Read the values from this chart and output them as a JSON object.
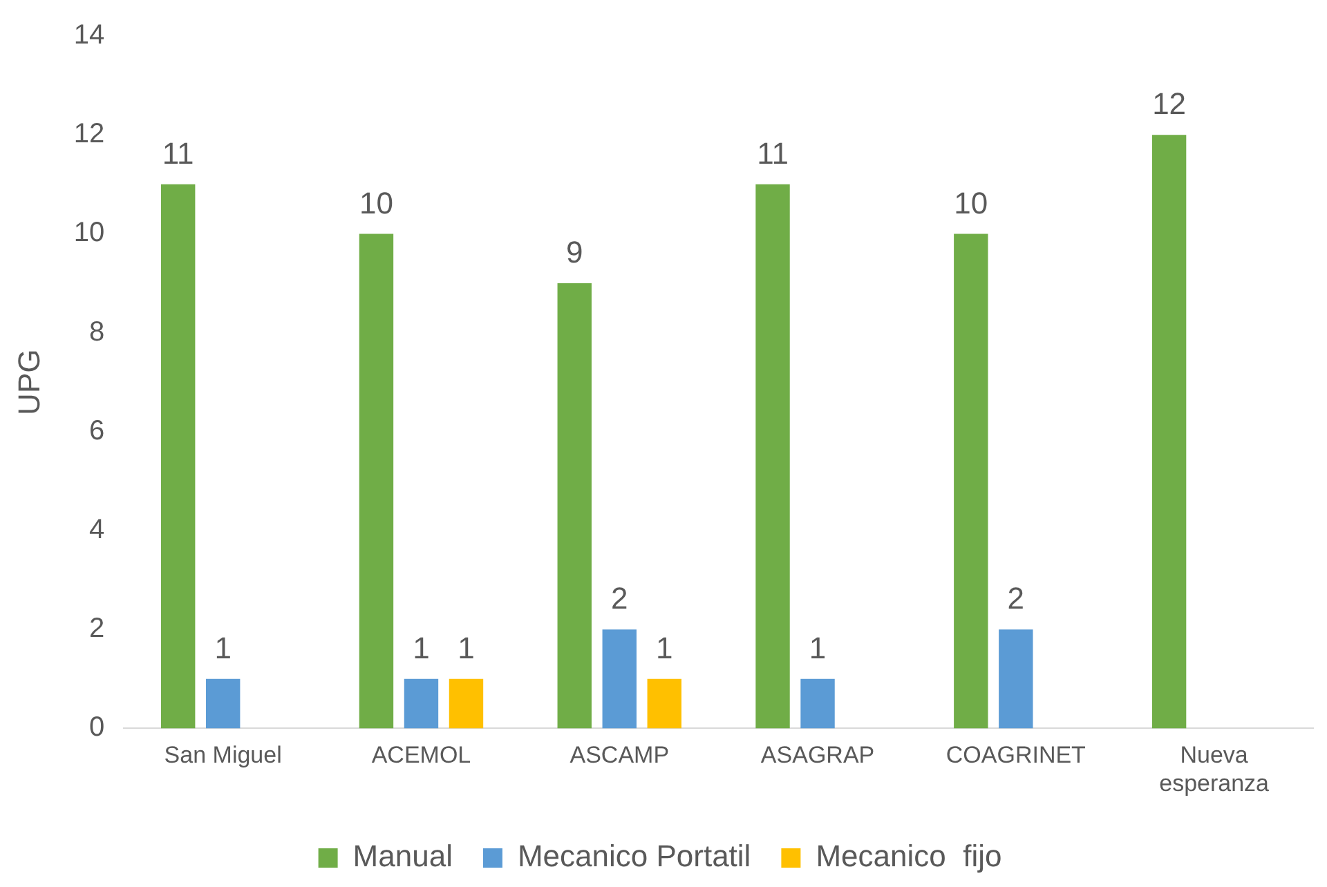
{
  "chart_data": {
    "type": "bar",
    "ylabel": "UPG",
    "categories": [
      "San Miguel",
      "ACEMOL",
      "ASCAMP",
      "ASAGRAP",
      "COAGRINET",
      "Nueva esperanza"
    ],
    "series": [
      {
        "name": "Manual",
        "color": "#70ad47",
        "values": [
          11,
          10,
          9,
          11,
          10,
          12
        ]
      },
      {
        "name": "Mecanico Portatil",
        "color": "#5b9bd5",
        "values": [
          1,
          1,
          2,
          1,
          2,
          null
        ]
      },
      {
        "name": "Mecanico  fijo",
        "color": "#ffc000",
        "values": [
          null,
          1,
          1,
          null,
          null,
          null
        ]
      }
    ],
    "ylim": [
      0,
      14
    ],
    "yticks": [
      0,
      2,
      4,
      6,
      8,
      10,
      12,
      14
    ],
    "grid": false,
    "legend": "bottom",
    "data_labels": true
  }
}
